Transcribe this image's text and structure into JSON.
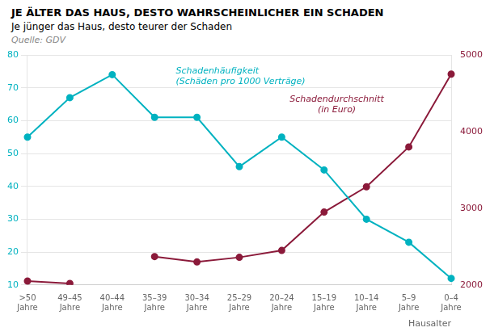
{
  "chart_data": {
    "type": "line",
    "title": "JE ÄLTER DAS HAUS, DESTO WAHRSCHEINLICHER EIN SCHADEN",
    "subtitle": "Je jünger das Haus, desto teurer der Schaden",
    "source": "Quelle: GDV",
    "x_label": "Hausalter",
    "categories": [
      ">50\nJahre",
      "49–45\nJahre",
      "40–44\nJahre",
      "35–39\nJahre",
      "30–34\nJahre",
      "25–29\nJahre",
      "20–24\nJahre",
      "15–19\nJahre",
      "10–14\nJahre",
      "5–9\nJahre",
      "0–4\nJahre"
    ],
    "series": [
      {
        "color": "#00B2C0",
        "marker": "circle",
        "values": [
          55,
          67,
          74,
          61,
          61,
          46,
          55,
          45,
          30,
          23,
          12
        ]
      },
      {
        "color": "#8B1A3A",
        "marker": "circle",
        "axis": "y2",
        "values": [
          2050,
          2020,
          null,
          2370,
          2300,
          2360,
          2450,
          2950,
          3280,
          3800,
          4750
        ]
      }
    ],
    "ylim": [
      10,
      80
    ],
    "yticks": [
      10,
      20,
      30,
      40,
      50,
      60,
      70,
      80
    ],
    "y2lim": [
      2000,
      5000
    ],
    "y2ticks": [
      2000,
      3000,
      4000,
      5000
    ],
    "grid": true,
    "annotations": [
      {
        "text": "Schadenhäufigkeit\n(Schäden pro 1000 Verträge)",
        "color": "#00B2C0"
      },
      {
        "text": "Schadendurchschnitt\n(in Euro)",
        "color": "#8B1A3A"
      }
    ]
  }
}
